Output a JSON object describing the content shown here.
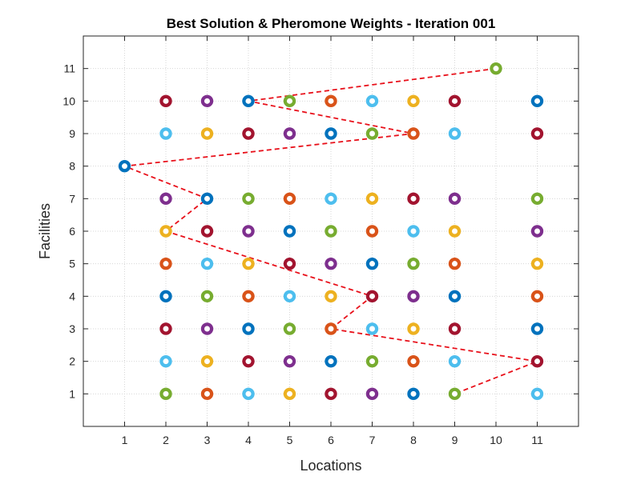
{
  "chart_data": {
    "type": "scatter",
    "title": "Best Solution & Pheromone Weights - Iteration 001",
    "xlabel": "Locations",
    "ylabel": "Facilities",
    "xlim": [
      0,
      12
    ],
    "ylim": [
      0,
      12
    ],
    "xticks": [
      "1",
      "2",
      "3",
      "4",
      "5",
      "6",
      "7",
      "8",
      "9",
      "10",
      "11"
    ],
    "yticks": [
      "1",
      "2",
      "3",
      "4",
      "5",
      "6",
      "7",
      "8",
      "9",
      "10",
      "11"
    ],
    "grid": true,
    "box": true,
    "legend": "none",
    "palette": {
      "blue": "#0072BD",
      "orange": "#D95319",
      "yellow": "#EDB120",
      "purple": "#7E2F8E",
      "green": "#77AC30",
      "cyan": "#4DBEEE",
      "maroon": "#A2142F"
    },
    "marker_style": "ring",
    "points": [
      {
        "x": 10,
        "y": 11,
        "color": "green"
      },
      {
        "x": 2,
        "y": 10,
        "color": "maroon"
      },
      {
        "x": 3,
        "y": 10,
        "color": "purple"
      },
      {
        "x": 4,
        "y": 10,
        "color": "blue"
      },
      {
        "x": 5,
        "y": 10,
        "color": "green"
      },
      {
        "x": 6,
        "y": 10,
        "color": "orange"
      },
      {
        "x": 7,
        "y": 10,
        "color": "cyan"
      },
      {
        "x": 8,
        "y": 10,
        "color": "yellow"
      },
      {
        "x": 9,
        "y": 10,
        "color": "maroon"
      },
      {
        "x": 11,
        "y": 10,
        "color": "blue"
      },
      {
        "x": 2,
        "y": 9,
        "color": "cyan"
      },
      {
        "x": 3,
        "y": 9,
        "color": "yellow"
      },
      {
        "x": 4,
        "y": 9,
        "color": "maroon"
      },
      {
        "x": 5,
        "y": 9,
        "color": "purple"
      },
      {
        "x": 6,
        "y": 9,
        "color": "blue"
      },
      {
        "x": 7,
        "y": 9,
        "color": "green"
      },
      {
        "x": 8,
        "y": 9,
        "color": "orange"
      },
      {
        "x": 9,
        "y": 9,
        "color": "cyan"
      },
      {
        "x": 11,
        "y": 9,
        "color": "maroon"
      },
      {
        "x": 1,
        "y": 8,
        "color": "blue"
      },
      {
        "x": 2,
        "y": 7,
        "color": "purple"
      },
      {
        "x": 3,
        "y": 7,
        "color": "blue"
      },
      {
        "x": 4,
        "y": 7,
        "color": "green"
      },
      {
        "x": 5,
        "y": 7,
        "color": "orange"
      },
      {
        "x": 6,
        "y": 7,
        "color": "cyan"
      },
      {
        "x": 7,
        "y": 7,
        "color": "yellow"
      },
      {
        "x": 8,
        "y": 7,
        "color": "maroon"
      },
      {
        "x": 9,
        "y": 7,
        "color": "purple"
      },
      {
        "x": 11,
        "y": 7,
        "color": "green"
      },
      {
        "x": 2,
        "y": 6,
        "color": "yellow"
      },
      {
        "x": 3,
        "y": 6,
        "color": "maroon"
      },
      {
        "x": 4,
        "y": 6,
        "color": "purple"
      },
      {
        "x": 5,
        "y": 6,
        "color": "blue"
      },
      {
        "x": 6,
        "y": 6,
        "color": "green"
      },
      {
        "x": 7,
        "y": 6,
        "color": "orange"
      },
      {
        "x": 8,
        "y": 6,
        "color": "cyan"
      },
      {
        "x": 9,
        "y": 6,
        "color": "yellow"
      },
      {
        "x": 11,
        "y": 6,
        "color": "purple"
      },
      {
        "x": 2,
        "y": 5,
        "color": "orange"
      },
      {
        "x": 3,
        "y": 5,
        "color": "cyan"
      },
      {
        "x": 4,
        "y": 5,
        "color": "yellow"
      },
      {
        "x": 5,
        "y": 5,
        "color": "maroon"
      },
      {
        "x": 6,
        "y": 5,
        "color": "purple"
      },
      {
        "x": 7,
        "y": 5,
        "color": "blue"
      },
      {
        "x": 8,
        "y": 5,
        "color": "green"
      },
      {
        "x": 9,
        "y": 5,
        "color": "orange"
      },
      {
        "x": 11,
        "y": 5,
        "color": "yellow"
      },
      {
        "x": 2,
        "y": 4,
        "color": "blue"
      },
      {
        "x": 3,
        "y": 4,
        "color": "green"
      },
      {
        "x": 4,
        "y": 4,
        "color": "orange"
      },
      {
        "x": 5,
        "y": 4,
        "color": "cyan"
      },
      {
        "x": 6,
        "y": 4,
        "color": "yellow"
      },
      {
        "x": 7,
        "y": 4,
        "color": "maroon"
      },
      {
        "x": 8,
        "y": 4,
        "color": "purple"
      },
      {
        "x": 9,
        "y": 4,
        "color": "blue"
      },
      {
        "x": 11,
        "y": 4,
        "color": "orange"
      },
      {
        "x": 2,
        "y": 3,
        "color": "maroon"
      },
      {
        "x": 3,
        "y": 3,
        "color": "purple"
      },
      {
        "x": 4,
        "y": 3,
        "color": "blue"
      },
      {
        "x": 5,
        "y": 3,
        "color": "green"
      },
      {
        "x": 6,
        "y": 3,
        "color": "orange"
      },
      {
        "x": 7,
        "y": 3,
        "color": "cyan"
      },
      {
        "x": 8,
        "y": 3,
        "color": "yellow"
      },
      {
        "x": 9,
        "y": 3,
        "color": "maroon"
      },
      {
        "x": 11,
        "y": 3,
        "color": "blue"
      },
      {
        "x": 2,
        "y": 2,
        "color": "cyan"
      },
      {
        "x": 3,
        "y": 2,
        "color": "yellow"
      },
      {
        "x": 4,
        "y": 2,
        "color": "maroon"
      },
      {
        "x": 5,
        "y": 2,
        "color": "purple"
      },
      {
        "x": 6,
        "y": 2,
        "color": "blue"
      },
      {
        "x": 7,
        "y": 2,
        "color": "green"
      },
      {
        "x": 8,
        "y": 2,
        "color": "orange"
      },
      {
        "x": 9,
        "y": 2,
        "color": "cyan"
      },
      {
        "x": 11,
        "y": 2,
        "color": "maroon"
      },
      {
        "x": 2,
        "y": 1,
        "color": "green"
      },
      {
        "x": 3,
        "y": 1,
        "color": "orange"
      },
      {
        "x": 4,
        "y": 1,
        "color": "cyan"
      },
      {
        "x": 5,
        "y": 1,
        "color": "yellow"
      },
      {
        "x": 6,
        "y": 1,
        "color": "maroon"
      },
      {
        "x": 7,
        "y": 1,
        "color": "purple"
      },
      {
        "x": 8,
        "y": 1,
        "color": "blue"
      },
      {
        "x": 9,
        "y": 1,
        "color": "green"
      },
      {
        "x": 11,
        "y": 1,
        "color": "cyan"
      }
    ],
    "best_path": {
      "color": "#E8101A",
      "style": "dashed",
      "x": [
        10,
        4,
        8,
        1,
        3,
        2,
        7,
        6,
        11,
        9
      ],
      "y": [
        11,
        10,
        9,
        8,
        7,
        6,
        4,
        3,
        2,
        1
      ]
    }
  }
}
